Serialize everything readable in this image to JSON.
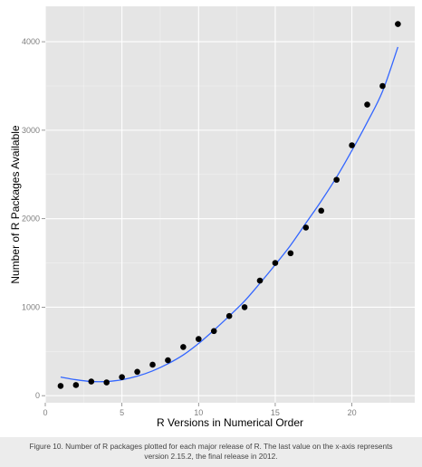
{
  "chart_data": {
    "type": "scatter",
    "title": "",
    "xlabel": "R Versions in Numerical Order",
    "ylabel": "Number of R Packages Available",
    "xlim": [
      0,
      24.1
    ],
    "ylim": [
      -80,
      4400
    ],
    "x_ticks": [
      0,
      5,
      10,
      15,
      20
    ],
    "y_ticks": [
      0,
      1000,
      2000,
      3000,
      4000
    ],
    "grid": true,
    "legend": "none",
    "series": [
      {
        "type": "points",
        "x": [
          1,
          2,
          3,
          4,
          5,
          6,
          7,
          8,
          9,
          10,
          11,
          12,
          13,
          14,
          15,
          16,
          17,
          18,
          19,
          20,
          21,
          22,
          23
        ],
        "y": [
          110,
          120,
          160,
          150,
          210,
          270,
          350,
          400,
          550,
          640,
          730,
          900,
          1000,
          1300,
          1500,
          1610,
          1900,
          2090,
          2440,
          2830,
          3290,
          3500,
          4200
        ]
      },
      {
        "type": "smooth",
        "x": [
          1,
          2,
          3,
          4,
          5,
          6,
          7,
          8,
          9,
          10,
          11,
          12,
          13,
          14,
          15,
          16,
          17,
          18,
          19,
          20,
          21,
          22,
          23
        ],
        "y": [
          210,
          180,
          160,
          160,
          180,
          220,
          280,
          360,
          460,
          590,
          740,
          900,
          1070,
          1270,
          1480,
          1700,
          1950,
          2200,
          2470,
          2770,
          3090,
          3440,
          3940
        ]
      }
    ],
    "colors": {
      "panel_background": "#e5e5e5",
      "grid_major": "#ffffff",
      "grid_minor": "#f2f2f2",
      "points": "#000000",
      "smooth_line": "#3366ff",
      "tick_label": "#7f7f7f"
    }
  },
  "caption": {
    "line1": "Figure 10. Number of R packages plotted for each major release of R. The last value on the x-axis represents",
    "line2": "version 2.15.2, the final release in 2012."
  }
}
